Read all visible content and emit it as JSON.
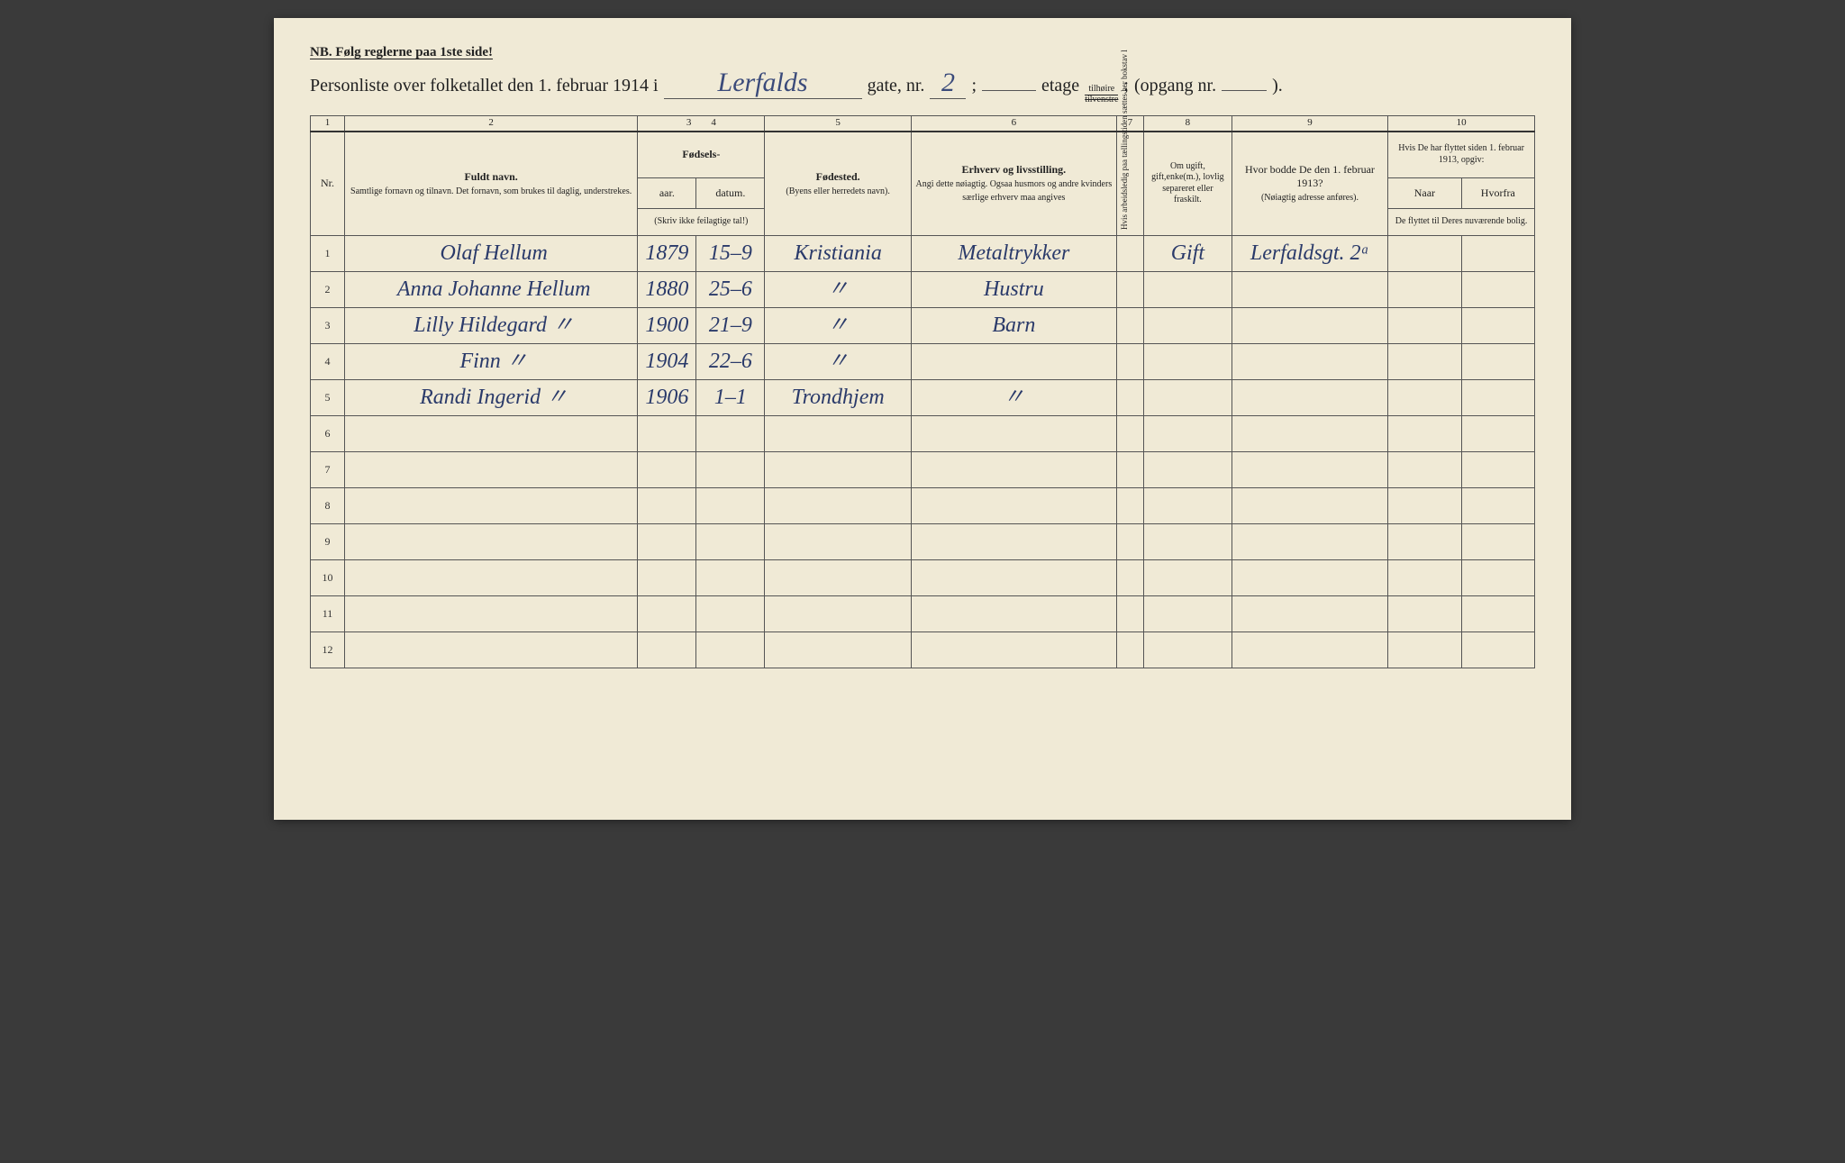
{
  "colors": {
    "paper": "#f0ead6",
    "ink_print": "#222222",
    "ink_hand": "#2a3a6a",
    "rule": "#555555"
  },
  "header": {
    "nb": "NB.  Følg reglerne paa 1ste side!",
    "title_prefix": "Personliste over folketallet den 1. februar 1914 i",
    "street_hand": "Lerfalds",
    "gate_label": "gate, nr.",
    "gate_nr_hand": "2",
    "semicolon1": ";",
    "etage_label": "etage",
    "fraction_top": "tilhøire",
    "fraction_bottom": "tilvenstre",
    "semicolon2": ";",
    "opgang_label": "(opgang nr.",
    "opgang_nr_hand": "",
    "close_paren": ")."
  },
  "columns": {
    "nums": [
      "1",
      "2",
      "3",
      "4",
      "5",
      "6",
      "7",
      "8",
      "9",
      "10"
    ],
    "c1": "Nr.",
    "c2_title": "Fuldt navn.",
    "c2_sub": "Samtlige fornavn og tilnavn. Det fornavn, som brukes til daglig, understrekes.",
    "c34_title": "Fødsels-",
    "c3": "aar.",
    "c4": "datum.",
    "c34_note": "(Skriv ikke feilagtige tal!)",
    "c5_title": "Fødested.",
    "c5_sub": "(Byens eller herredets navn).",
    "c6_title": "Erhverv og livsstilling.",
    "c6_sub": "Angi dette nøiagtig. Ogsaa husmors og andre kvinders særlige erhverv maa angives",
    "c7": "Hvis arbeidsledig paa tællingstiden sættes her bokstav l",
    "c8": "Om ugift, gift,enke(m.), lovlig separeret eller fraskilt.",
    "c9_title": "Hvor bodde De den 1. februar 1913?",
    "c9_sub": "(Nøiagtig adresse anføres).",
    "c10_title": "Hvis De har flyttet siden 1. februar 1913, opgiv:",
    "c10_a": "Naar",
    "c10_b": "Hvorfra",
    "c10_sub": "De flyttet til Deres nuværende bolig."
  },
  "rows": [
    {
      "nr": "1",
      "name": "Olaf Hellum",
      "year": "1879",
      "date": "15–9",
      "place": "Kristiania",
      "occ": "Metaltrykker",
      "col7": "",
      "status": "Gift",
      "addr": "Lerfaldsgt. 2ᵃ",
      "when": "",
      "from": ""
    },
    {
      "nr": "2",
      "name": "Anna Johanne Hellum",
      "year": "1880",
      "date": "25–6",
      "place": "〃",
      "occ": "Hustru",
      "col7": "",
      "status": "",
      "addr": "",
      "when": "",
      "from": ""
    },
    {
      "nr": "3",
      "name": "Lilly Hildegard   〃",
      "year": "1900",
      "date": "21–9",
      "place": "〃",
      "occ": "Barn",
      "col7": "",
      "status": "",
      "addr": "",
      "when": "",
      "from": ""
    },
    {
      "nr": "4",
      "name": "Finn   〃",
      "year": "1904",
      "date": "22–6",
      "place": "〃",
      "occ": "",
      "col7": "",
      "status": "",
      "addr": "",
      "when": "",
      "from": ""
    },
    {
      "nr": "5",
      "name": "Randi Ingerid   〃",
      "year": "1906",
      "date": "1–1",
      "place": "Trondhjem",
      "occ": "〃",
      "col7": "",
      "status": "",
      "addr": "",
      "when": "",
      "from": ""
    },
    {
      "nr": "6",
      "name": "",
      "year": "",
      "date": "",
      "place": "",
      "occ": "",
      "col7": "",
      "status": "",
      "addr": "",
      "when": "",
      "from": ""
    },
    {
      "nr": "7",
      "name": "",
      "year": "",
      "date": "",
      "place": "",
      "occ": "",
      "col7": "",
      "status": "",
      "addr": "",
      "when": "",
      "from": ""
    },
    {
      "nr": "8",
      "name": "",
      "year": "",
      "date": "",
      "place": "",
      "occ": "",
      "col7": "",
      "status": "",
      "addr": "",
      "when": "",
      "from": ""
    },
    {
      "nr": "9",
      "name": "",
      "year": "",
      "date": "",
      "place": "",
      "occ": "",
      "col7": "",
      "status": "",
      "addr": "",
      "when": "",
      "from": ""
    },
    {
      "nr": "10",
      "name": "",
      "year": "",
      "date": "",
      "place": "",
      "occ": "",
      "col7": "",
      "status": "",
      "addr": "",
      "when": "",
      "from": ""
    },
    {
      "nr": "11",
      "name": "",
      "year": "",
      "date": "",
      "place": "",
      "occ": "",
      "col7": "",
      "status": "",
      "addr": "",
      "when": "",
      "from": ""
    },
    {
      "nr": "12",
      "name": "",
      "year": "",
      "date": "",
      "place": "",
      "occ": "",
      "col7": "",
      "status": "",
      "addr": "",
      "when": "",
      "from": ""
    }
  ]
}
